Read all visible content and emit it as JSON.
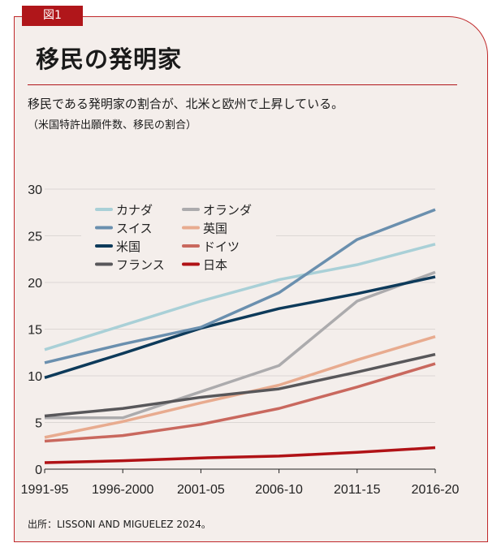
{
  "badge": "図1",
  "title": "移民の発明家",
  "subtitle": "移民である発明家の割合が、北米と欧州で上昇している。",
  "note": "（米国特許出願件数、移民の割合）",
  "source": "出所：LISSONI AND MIGUELEZ 2024。",
  "chart_data": {
    "type": "line",
    "categories": [
      "1991-95",
      "1996-2000",
      "2001-05",
      "2006-10",
      "2011-15",
      "2016-20"
    ],
    "ylim": [
      0,
      30
    ],
    "yticks": [
      0,
      5,
      10,
      15,
      20,
      25,
      30
    ],
    "grid": true,
    "legend_placement": "top-left",
    "series": [
      {
        "name": "カナダ",
        "color": "#a9d0d7",
        "values": [
          12.8,
          15.4,
          18.0,
          20.3,
          21.9,
          24.1
        ]
      },
      {
        "name": "スイス",
        "color": "#6a8fae",
        "values": [
          11.4,
          13.4,
          15.2,
          18.9,
          24.6,
          27.8
        ]
      },
      {
        "name": "米国",
        "color": "#0d3a5a",
        "values": [
          9.8,
          12.4,
          15.1,
          17.2,
          18.8,
          20.6
        ]
      },
      {
        "name": "フランス",
        "color": "#58575a",
        "values": [
          5.7,
          6.5,
          7.7,
          8.6,
          10.4,
          12.3
        ]
      },
      {
        "name": "オランダ",
        "color": "#acabad",
        "values": [
          5.5,
          5.5,
          8.3,
          11.1,
          18.0,
          21.1
        ]
      },
      {
        "name": "英国",
        "color": "#e8ab8f",
        "values": [
          3.4,
          5.1,
          7.1,
          9.0,
          11.7,
          14.2
        ]
      },
      {
        "name": "ドイツ",
        "color": "#c9685e",
        "values": [
          3.0,
          3.6,
          4.8,
          6.5,
          8.8,
          11.3
        ]
      },
      {
        "name": "日本",
        "color": "#b01216",
        "values": [
          0.7,
          0.9,
          1.2,
          1.4,
          1.8,
          2.3
        ]
      }
    ]
  }
}
